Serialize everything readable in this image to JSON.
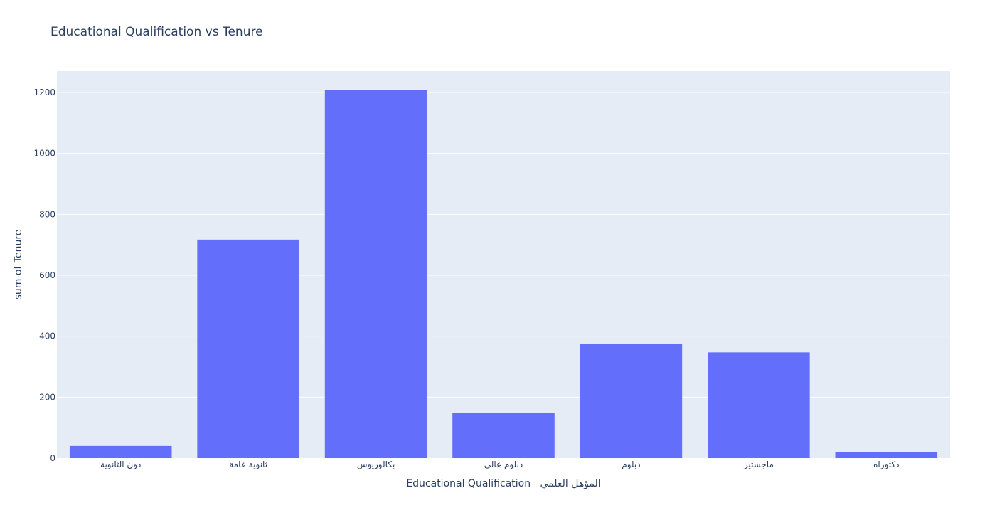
{
  "chart_data": {
    "type": "bar",
    "title": "Educational Qualification vs Tenure",
    "xlabel": "Educational Qualification   المؤهل العلمي",
    "ylabel": "sum of Tenure",
    "categories": [
      "دون الثانوية",
      "ثانوية عامة",
      "بكالوريوس",
      "دبلوم عالي",
      "دبلوم",
      "ماجستير",
      "دكتوراه"
    ],
    "values": [
      40,
      717,
      1207,
      149,
      375,
      347,
      20
    ],
    "ylim": [
      0,
      1270
    ],
    "yticks": [
      0,
      200,
      400,
      600,
      800,
      1000,
      1200
    ],
    "grid": true,
    "colors": {
      "bar": "#636efa",
      "plot_bg": "#e5ecf6",
      "grid": "#ffffff",
      "text": "#2a3f5f"
    }
  }
}
